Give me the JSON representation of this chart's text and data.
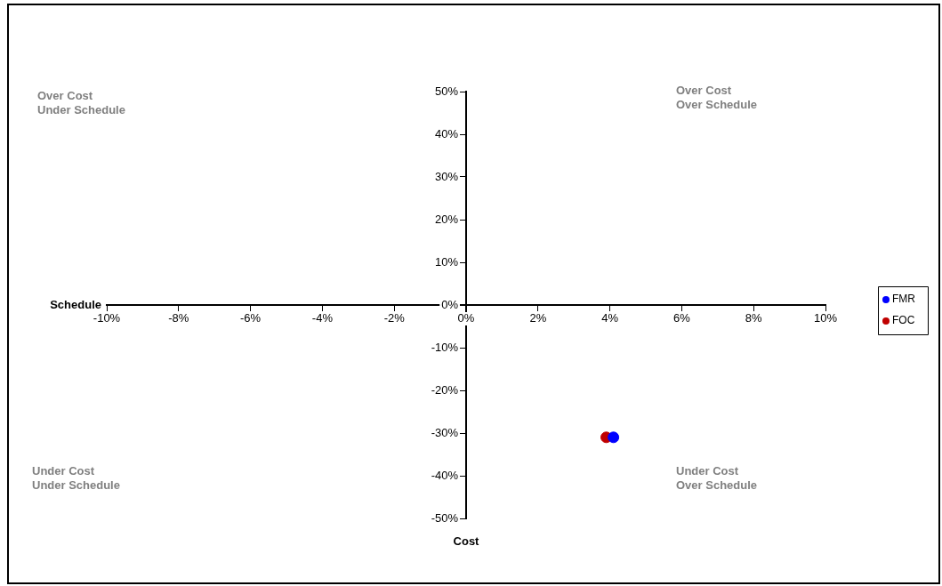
{
  "chart_data": {
    "type": "scatter",
    "xlabel": "Cost",
    "ylabel": "Schedule",
    "series": [
      {
        "name": "FMR",
        "color": "#0000ff",
        "x": [
          4.1
        ],
        "values": [
          -31
        ]
      },
      {
        "name": "FOC",
        "color": "#c00000",
        "x": [
          3.9
        ],
        "values": [
          -31
        ]
      }
    ],
    "xlim": [
      -10,
      10
    ],
    "ylim": [
      -50,
      50
    ],
    "xticks": [
      {
        "value": -10,
        "label": "-10%"
      },
      {
        "value": -8,
        "label": "-8%"
      },
      {
        "value": -6,
        "label": "-6%"
      },
      {
        "value": -4,
        "label": "-4%"
      },
      {
        "value": -2,
        "label": "-2%"
      },
      {
        "value": 0,
        "label": "0%"
      },
      {
        "value": 2,
        "label": "2%"
      },
      {
        "value": 4,
        "label": "4%"
      },
      {
        "value": 6,
        "label": "6%"
      },
      {
        "value": 8,
        "label": "8%"
      },
      {
        "value": 10,
        "label": "10%"
      }
    ],
    "yticks": [
      {
        "value": -50,
        "label": "-50%"
      },
      {
        "value": -40,
        "label": "-40%"
      },
      {
        "value": -30,
        "label": "-30%"
      },
      {
        "value": -20,
        "label": "-20%"
      },
      {
        "value": -10,
        "label": "-10%"
      },
      {
        "value": 0,
        "label": "0%"
      },
      {
        "value": 10,
        "label": "10%"
      },
      {
        "value": 20,
        "label": "20%"
      },
      {
        "value": 30,
        "label": "30%"
      },
      {
        "value": 40,
        "label": "40%"
      },
      {
        "value": 50,
        "label": "50%"
      }
    ],
    "annotations": [
      "Over Cost\nUnder Schedule",
      "Over Cost\nOver Schedule",
      "Under Cost\nUnder Schedule",
      "Under Cost\nOver Schedule"
    ],
    "grid": false,
    "legend": "right",
    "marker": "circle"
  }
}
